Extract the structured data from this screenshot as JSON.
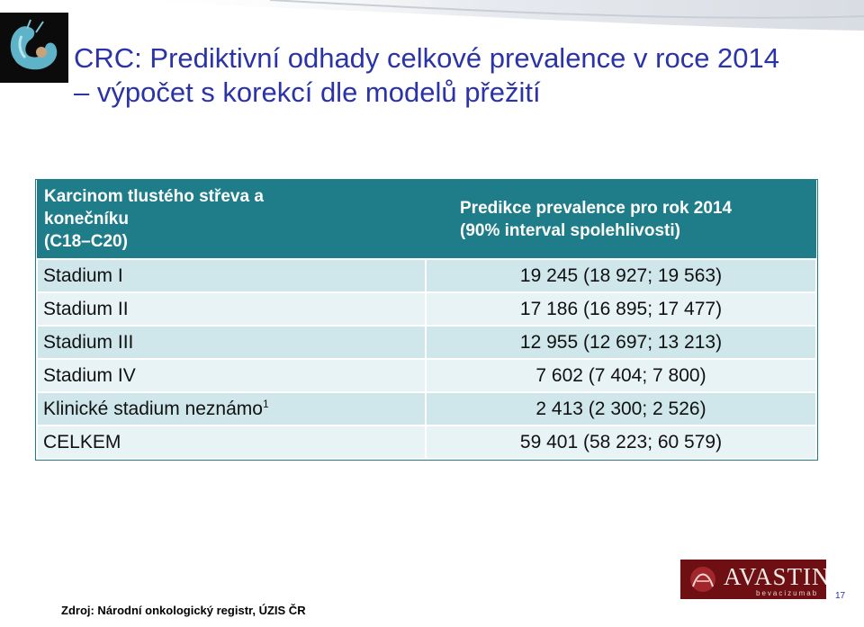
{
  "title": {
    "line1": "CRC: Prediktivní odhady celkové prevalence v roce 2014",
    "line2": "– výpočet s korekcí dle modelů přežití"
  },
  "table": {
    "header": {
      "col1": [
        "Karcinom tlustého střeva a",
        "konečníku",
        "(C18–C20)"
      ],
      "col2": [
        "Predikce prevalence pro rok 2014",
        "(90% interval spolehlivosti)"
      ]
    },
    "rows": [
      {
        "label": "Stadium I",
        "sup": "",
        "value": "19 245 (18 927; 19 563)"
      },
      {
        "label": "Stadium II",
        "sup": "",
        "value": "17 186 (16 895; 17 477)"
      },
      {
        "label": "Stadium III",
        "sup": "",
        "value": "12 955 (12 697; 13 213)"
      },
      {
        "label": "Stadium IV",
        "sup": "",
        "value": "7 602 (7 404; 7 800)"
      },
      {
        "label": "Klinické stadium neznámo",
        "sup": "1",
        "value": "2 413 (2 300; 2 526)"
      },
      {
        "label": "CELKEM",
        "sup": "",
        "value": "59 401 (58 223; 60 579)"
      }
    ]
  },
  "footer": {
    "source": "Zdroj: Národní onkologický registr, ÚZIS ČR",
    "brand_name": "AVASTIN",
    "brand_reg": "®",
    "brand_sub": "bevacizumab",
    "slide_number": "17"
  },
  "colors": {
    "title": "#2a33a8",
    "header_bg": "#1e7d88",
    "row_dark": "#cfe6ea",
    "row_light": "#e8f3f5",
    "brand_bg": "#6e0f14"
  },
  "icons": [
    "colon-organ-icon",
    "avastin-logo-icon"
  ]
}
